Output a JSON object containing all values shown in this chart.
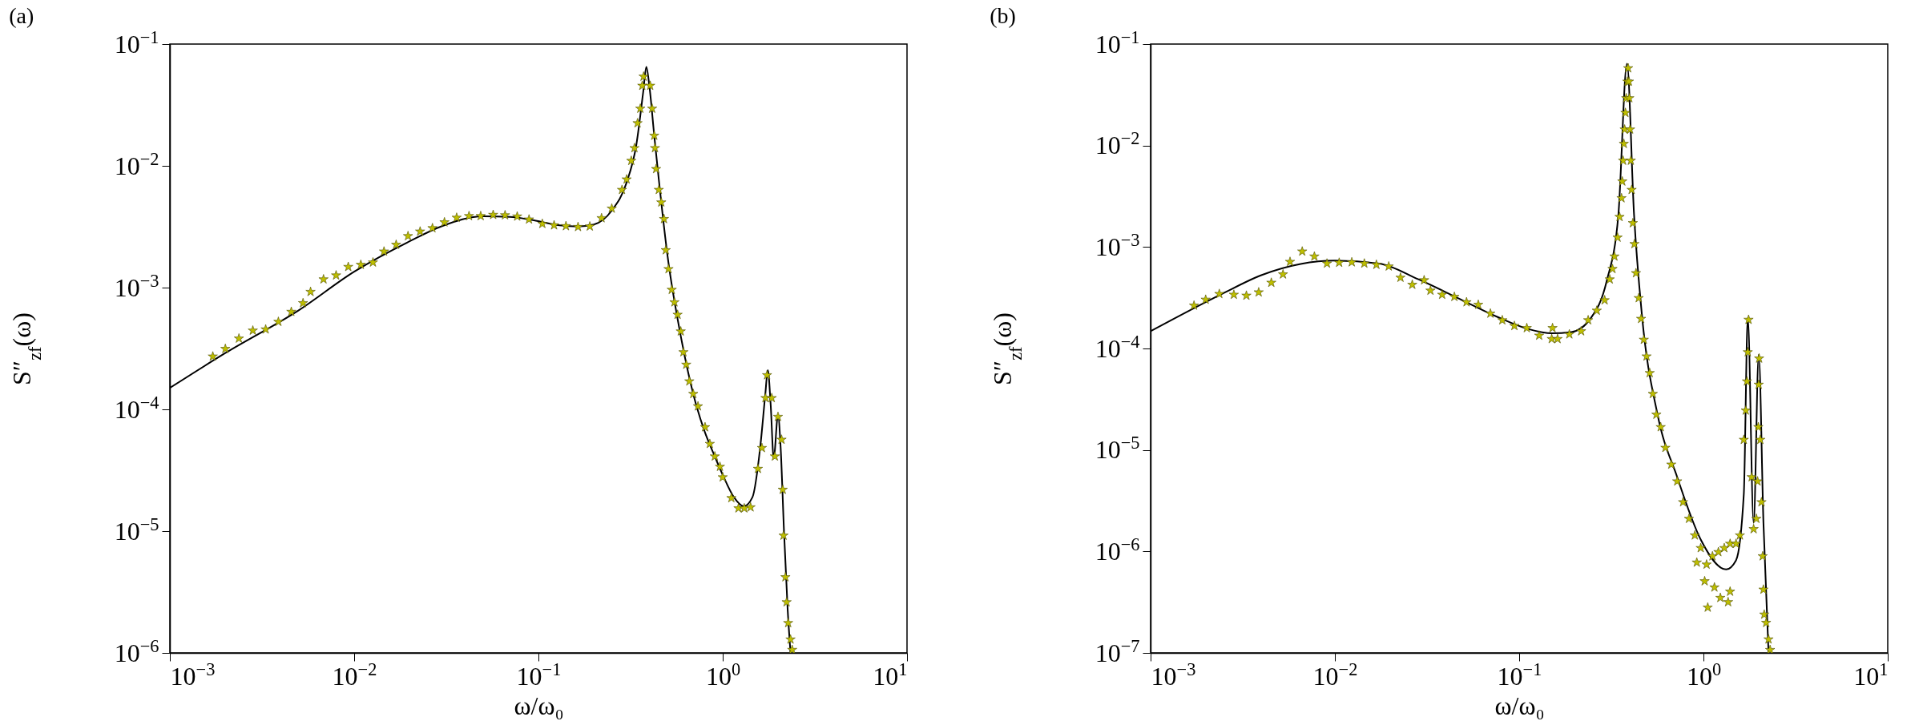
{
  "chart_data": [
    {
      "type": "line",
      "title": "(a)",
      "xlabel": "ω/ω₀",
      "ylabel": "S″$_{zf}$(ω)",
      "log": "xy",
      "grid": false,
      "xlim": [
        0.001,
        10
      ],
      "ylim": [
        1e-06,
        0.1
      ],
      "xticks": [
        {
          "value": 0.001,
          "label": "10$^{−3}$"
        },
        {
          "value": 0.01,
          "label": "10$^{−2}$"
        },
        {
          "value": 0.1,
          "label": "10$^{−1}$"
        },
        {
          "value": 1,
          "label": "10$^{0}$"
        },
        {
          "value": 10,
          "label": "10$^{1}$"
        }
      ],
      "yticks": [
        {
          "value": 1e-06,
          "label": "10$^{−6}$"
        },
        {
          "value": 1e-05,
          "label": "10$^{−5}$"
        },
        {
          "value": 0.0001,
          "label": "10$^{−4}$"
        },
        {
          "value": 0.001,
          "label": "10$^{−3}$"
        },
        {
          "value": 0.01,
          "label": "10$^{−2}$"
        },
        {
          "value": 0.1,
          "label": "10$^{−1}$"
        }
      ],
      "series": [
        {
          "color": "#000000",
          "line_style": "solid",
          "x": [
            0.001,
            0.002,
            0.005,
            0.01,
            0.02,
            0.03,
            0.05,
            0.07,
            0.0906,
            0.13,
            0.164,
            0.2,
            0.25,
            0.3,
            0.34,
            0.37,
            0.385,
            0.4,
            0.425,
            0.45,
            0.5,
            0.6,
            0.7,
            0.8,
            0.9,
            1.0,
            1.15,
            1.3,
            1.45,
            1.6,
            1.7,
            1.757,
            1.82,
            1.891,
            1.995,
            2.06,
            2.15,
            2.25,
            2.333
          ],
          "values": [
            0.00015,
            0.00029,
            0.00065,
            0.00135,
            0.0024,
            0.0032,
            0.00385,
            0.0038,
            0.00361,
            0.00325,
            0.00318,
            0.0033,
            0.0043,
            0.0072,
            0.015,
            0.04,
            0.0649,
            0.045,
            0.0177,
            0.0077,
            0.0019,
            0.00036,
            0.000125,
            6.5e-05,
            4.2e-05,
            2.9e-05,
            1.9e-05,
            1.6e-05,
            1.9e-05,
            5e-05,
            0.00013,
            0.00021,
            0.00011,
            3.96e-05,
            9.04e-05,
            5e-05,
            1e-05,
            2.3e-06,
            1e-06
          ]
        },
        {
          "type": "scatter",
          "marker": "star",
          "color": "#bfbf00",
          "x": [
            0.00171,
            0.002,
            0.00237,
            0.00282,
            0.00331,
            0.00388,
            0.00456,
            0.00528,
            0.0058,
            0.00682,
            0.00798,
            0.00929,
            0.01087,
            0.01265,
            0.01452,
            0.0169,
            0.0196,
            0.0228,
            0.0266,
            0.0309,
            0.036,
            0.042,
            0.0486,
            0.0568,
            0.0659,
            0.0767,
            0.0889,
            0.105,
            0.1216,
            0.141,
            0.164,
            0.19,
            0.22,
            0.25,
            0.284,
            0.301,
            0.319,
            0.332,
            0.345,
            0.357,
            0.366,
            0.372,
            0.404,
            0.414,
            0.425,
            0.429,
            0.435,
            0.45,
            0.464,
            0.48,
            0.491,
            0.508,
            0.529,
            0.547,
            0.569,
            0.592,
            0.612,
            0.634,
            0.659,
            0.692,
            0.734,
            0.802,
            0.851,
            0.906,
            0.966,
            1.0,
            1.114,
            1.217,
            1.309,
            1.416,
            1.553,
            1.632,
            1.706,
            1.74,
            1.845,
            1.919,
            1.995,
            2.085,
            2.117,
            2.138,
            2.189,
            2.222,
            2.265,
            2.333,
            2.382
          ],
          "values": [
            0.000272,
            0.000314,
            0.000382,
            0.000444,
            0.000454,
            0.000524,
            0.000633,
            0.000746,
            0.000923,
            0.00117,
            0.00126,
            0.00148,
            0.00154,
            0.00161,
            0.00198,
            0.00225,
            0.00265,
            0.00289,
            0.00308,
            0.00344,
            0.00375,
            0.00387,
            0.00387,
            0.00396,
            0.00393,
            0.00384,
            0.00363,
            0.00334,
            0.00325,
            0.0032,
            0.00315,
            0.00318,
            0.00372,
            0.00446,
            0.00635,
            0.00774,
            0.011,
            0.014,
            0.0224,
            0.0295,
            0.0455,
            0.0541,
            0.0455,
            0.0295,
            0.0177,
            0.014,
            0.00942,
            0.00635,
            0.00501,
            0.00366,
            0.00203,
            0.00142,
            0.00096,
            0.000758,
            0.000599,
            0.000437,
            0.000295,
            0.000233,
            0.00017,
            0.000134,
            0.000106,
            7.14e-05,
            5.21e-05,
            4.11e-05,
            3.38e-05,
            2.77e-05,
            1.87e-05,
            1.54e-05,
            1.54e-05,
            1.57e-05,
            3.25e-05,
            4.82e-05,
            0.000124,
            0.000191,
            0.000124,
            4.11e-05,
            8.69e-05,
            5.64e-05,
            2.19e-05,
            9.2e-06,
            4.19e-06,
            2.61e-06,
            1.76e-06,
            1.29e-06,
            1.06e-06
          ]
        }
      ]
    },
    {
      "type": "line",
      "title": "(b)",
      "xlabel": "ω/ω₀",
      "ylabel": "S″$_{zf}$(ω)",
      "log": "xy",
      "grid": false,
      "xlim": [
        0.001,
        10
      ],
      "ylim": [
        1e-07,
        0.1
      ],
      "xticks": [
        {
          "value": 0.001,
          "label": "10$^{−3}$"
        },
        {
          "value": 0.01,
          "label": "10$^{−2}$"
        },
        {
          "value": 0.1,
          "label": "10$^{−1}$"
        },
        {
          "value": 1,
          "label": "10$^{0}$"
        },
        {
          "value": 10,
          "label": "10$^{1}$"
        }
      ],
      "yticks": [
        {
          "value": 1e-07,
          "label": "10$^{−7}$"
        },
        {
          "value": 1e-06,
          "label": "10$^{−6}$"
        },
        {
          "value": 1e-05,
          "label": "10$^{−5}$"
        },
        {
          "value": 0.0001,
          "label": "10$^{−4}$"
        },
        {
          "value": 0.001,
          "label": "10$^{−3}$"
        },
        {
          "value": 0.01,
          "label": "10$^{−2}$"
        },
        {
          "value": 0.1,
          "label": "10$^{−1}$"
        }
      ],
      "series": [
        {
          "color": "#000000",
          "line_style": "solid",
          "x": [
            0.001,
            0.00244,
            0.00399,
            0.00652,
            0.01,
            0.0174,
            0.0284,
            0.0465,
            0.076,
            0.1125,
            0.1502,
            0.1919,
            0.2451,
            0.2981,
            0.3454,
            0.3846,
            0.4201,
            0.4634,
            0.5636,
            0.7203,
            0.9663,
            1.328,
            1.502,
            1.656,
            1.74,
            1.872,
            1.995,
            2.116,
            2.255
          ],
          "values": [
            0.000148,
            0.000345,
            0.000528,
            0.000681,
            0.000735,
            0.000688,
            0.00048,
            0.000314,
            0.000205,
            0.000155,
            0.000141,
            0.000145,
            0.0002,
            0.000458,
            0.00208,
            0.0641,
            0.00208,
            0.000215,
            2.23e-05,
            5.4e-06,
            1.31e-06,
            6.64e-07,
            8.17e-07,
            3.7e-06,
            0.0002,
            1.91e-06,
            8.69e-05,
            1.91e-06,
            1e-07
          ]
        },
        {
          "type": "scatter",
          "marker": "star",
          "color": "#bfbf00",
          "x": [
            0.00172,
            0.00199,
            0.00236,
            0.00283,
            0.00331,
            0.00386,
            0.00452,
            0.00523,
            0.00571,
            0.00665,
            0.00774,
            0.00906,
            0.01055,
            0.01235,
            0.01445,
            0.0168,
            0.0196,
            0.0227,
            0.0263,
            0.0305,
            0.033,
            0.0382,
            0.0445,
            0.0518,
            0.06,
            0.0698,
            0.081,
            0.0942,
            0.11,
            0.1284,
            0.1502,
            0.1517,
            0.1616,
            0.1872,
            0.2169,
            0.2368,
            0.2638,
            0.2909,
            0.3101,
            0.3209,
            0.3289,
            0.342,
            0.3505,
            0.3592,
            0.3627,
            0.3663,
            0.3699,
            0.3735,
            0.3772,
            0.3809,
            0.3864,
            0.3903,
            0.3941,
            0.396,
            0.3999,
            0.4038,
            0.4077,
            0.414,
            0.4222,
            0.4305,
            0.4454,
            0.4588,
            0.4748,
            0.4913,
            0.511,
            0.5314,
            0.5554,
            0.5862,
            0.6216,
            0.6689,
            0.7203,
            0.775,
            0.8343,
            0.8979,
            0.9663,
            1.04,
            1.119,
            1.205,
            1.297,
            1.395,
            1.502,
            1.577,
            0.9201,
            1.015,
            1.147,
            1.235,
            1.055,
            1.361,
            1.395,
            1.656,
            1.697,
            1.722,
            1.74,
            1.757,
            1.827,
            1.872,
            1.937,
            1.966,
            1.985,
            1.995,
            2.005,
            2.035,
            2.065,
            2.096,
            2.116,
            2.137,
            2.189,
            2.255,
            2.3
          ],
          "values": [
            0.000265,
            0.000303,
            0.000345,
            0.000339,
            0.000332,
            0.000358,
            0.000445,
            0.000538,
            0.000715,
            0.000904,
            0.000807,
            0.000688,
            0.000701,
            0.000708,
            0.000688,
            0.000669,
            0.000644,
            0.000499,
            0.000425,
            0.000471,
            0.000372,
            0.000339,
            0.000323,
            0.000286,
            0.00027,
            0.000221,
            0.00019,
            0.000167,
            0.000159,
            0.000134,
            0.000124,
            0.000159,
            0.000124,
            0.000138,
            0.000148,
            0.00019,
            0.000236,
            0.000299,
            0.00048,
            0.000608,
            0.000807,
            0.00124,
            0.00198,
            0.00303,
            0.00443,
            0.0071,
            0.0104,
            0.0144,
            0.021,
            0.0293,
            0.0427,
            0.0578,
            0.0427,
            0.0293,
            0.0144,
            0.0071,
            0.00366,
            0.00172,
            0.00107,
            0.000553,
            0.000314,
            0.000196,
            0.000122,
            8.36e-05,
            5.73e-05,
            3.57e-05,
            2.23e-05,
            1.68e-05,
            1.05e-05,
            7.18e-06,
            4.91e-06,
            3.06e-06,
            2.1e-06,
            1.44e-06,
            1.08e-06,
            7.43e-07,
            8.97e-07,
            9.86e-07,
            1.08e-06,
            1.19e-06,
            1.19e-06,
            1.44e-06,
            7.78e-07,
            5.09e-07,
            4.42e-07,
            3.49e-07,
            2.8e-07,
            3.17e-07,
            4.02e-07,
            1.26e-05,
            2.45e-05,
            4.74e-05,
            9.19e-05,
            0.000192,
            5.4e-06,
            1.66e-06,
            2.1e-06,
            4.91e-06,
            1.68e-05,
            4.4e-05,
            7.97e-05,
            1.26e-05,
            3.06e-06,
            8.97e-07,
            4.21e-07,
            2.39e-07,
            1.98e-07,
            1.36e-07,
            1.07e-07
          ]
        }
      ]
    }
  ]
}
